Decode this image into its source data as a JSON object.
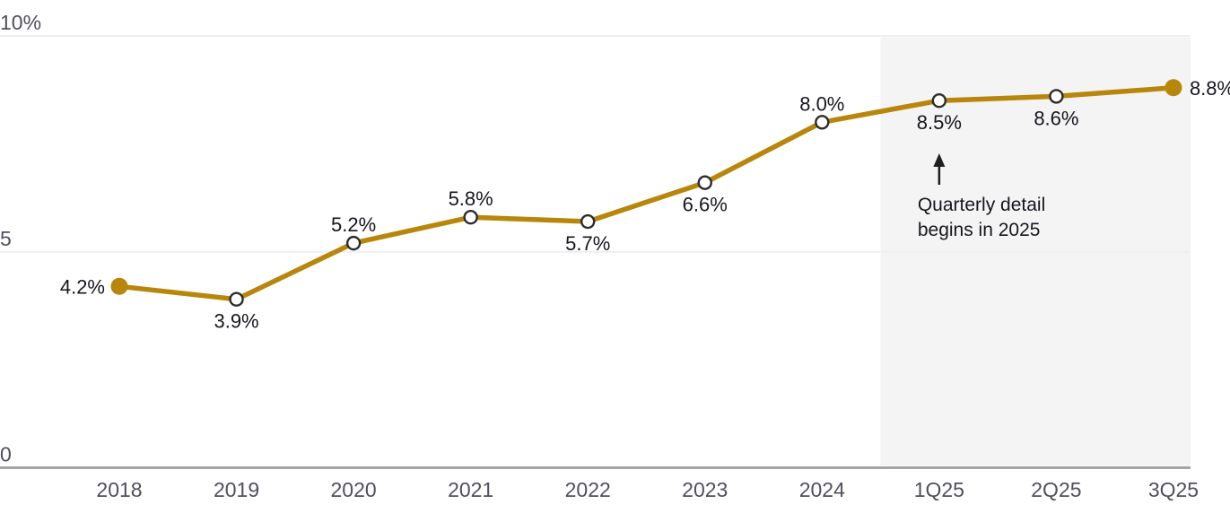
{
  "colors": {
    "background": "#FFFFFF",
    "line": "#B8860B",
    "marker_open_fill": "#FFFFFF",
    "marker_stroke": "#2B2B30",
    "data_label": "#16161E",
    "tick_label": "#50505A",
    "gridline": "#EFEFEF",
    "axis_line": "#A5A5A5",
    "highlight_region": "#F4F4F4",
    "annotation_text": "#16161E",
    "annotation_arrow": "#1F1F1F"
  },
  "chart_data": {
    "type": "line",
    "title": "",
    "xlabel": "",
    "ylabel": "",
    "ylim": [
      0,
      10
    ],
    "grid": "horizontal",
    "legend": "none",
    "categories": [
      "2018",
      "2019",
      "2020",
      "2021",
      "2022",
      "2023",
      "2024",
      "1Q25",
      "2Q25",
      "3Q25"
    ],
    "series": [
      {
        "name": "rate",
        "values": [
          4.2,
          3.9,
          5.2,
          5.8,
          5.7,
          6.6,
          8.0,
          8.5,
          8.6,
          8.8
        ],
        "point_labels": [
          "4.2%",
          "3.9%",
          "5.2%",
          "5.8%",
          "5.7%",
          "6.6%",
          "8.0%",
          "8.5%",
          "8.6%",
          "8.8%"
        ],
        "label_positions": [
          "left",
          "below",
          "above",
          "above",
          "below",
          "below",
          "above",
          "below",
          "below",
          "right"
        ],
        "markers": [
          "filled",
          "open",
          "open",
          "open",
          "open",
          "open",
          "open",
          "open",
          "open",
          "filled"
        ]
      }
    ],
    "y_ticks": [
      {
        "value": 0,
        "label": "0"
      },
      {
        "value": 5,
        "label": "5"
      },
      {
        "value": 10,
        "label": "10%"
      }
    ],
    "highlight_region": {
      "from_between": [
        "2024",
        "1Q25"
      ],
      "to_end": true
    },
    "annotation": {
      "line1": "Quarterly detail",
      "line2": "begins in 2025",
      "arrow": "up",
      "target_category": "1Q25"
    }
  }
}
